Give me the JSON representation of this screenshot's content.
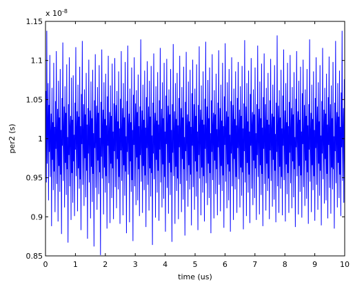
{
  "chart_data": {
    "type": "line",
    "xlabel": "time (us)",
    "ylabel": "per2 (s)",
    "xlim": [
      0,
      10
    ],
    "ylim": [
      0.85,
      1.15
    ],
    "y_multiplier_base": "x 10",
    "y_multiplier_exponent": "-8",
    "xticks": [
      "0",
      "1",
      "2",
      "3",
      "4",
      "5",
      "6",
      "7",
      "8",
      "9",
      "10"
    ],
    "yticks": [
      "0.85",
      "0.9",
      "0.95",
      "1",
      "1.05",
      "1.1",
      "1.15"
    ],
    "grid": false,
    "line_color": "#0000ff",
    "series": [
      {
        "values": [
          1.002,
          1.061,
          0.944,
          1.138,
          0.968,
          1.012,
          1.071,
          0.921,
          1.043,
          0.983,
          1.107,
          0.951,
          1.004,
          1.032,
          0.888,
          1.065,
          0.973,
          1.021,
          0.934,
          1.097,
          0.958,
          1.015,
          0.906,
          1.048,
          0.987,
          1.112,
          0.942,
          1.006,
          1.038,
          0.894,
          1.074,
          0.965,
          1.027,
          0.932,
          1.089,
          0.954,
          1.011,
          0.878,
          1.052,
          0.991,
          1.123,
          0.946,
          1.008,
          1.041,
          0.912,
          1.067,
          0.969,
          1.033,
          0.928,
          1.095,
          0.961,
          1.002,
          0.867,
          1.044,
          0.979,
          1.104,
          0.939,
          1.013,
          1.029,
          0.896,
          1.078,
          0.956,
          1.024,
          0.918,
          1.081,
          0.971,
          1.005,
          0.901,
          1.046,
          0.986,
          1.117,
          0.952,
          1.009,
          1.035,
          0.907,
          1.069,
          0.962,
          1.028,
          0.936,
          1.092,
          0.948,
          1.016,
          0.883,
          1.057,
          0.993,
          1.125,
          0.941,
          1.003,
          1.044,
          0.914,
          1.063,
          0.975,
          1.031,
          0.925,
          1.084,
          0.959,
          1.018,
          0.872,
          1.039,
          0.981,
          1.101,
          0.944,
          1.011,
          1.036,
          0.898,
          1.073,
          0.964,
          1.026,
          0.919,
          1.088,
          0.955,
          1.007,
          0.862,
          1.049,
          0.988,
          1.108,
          0.937,
          1.014,
          1.042,
          0.909,
          1.066,
          0.972,
          1.033,
          0.929,
          1.094,
          0.957,
          1.001,
          0.851,
          1.047,
          0.977,
          1.114,
          0.949,
          1.012,
          1.037,
          0.903,
          1.072,
          0.963,
          1.025,
          0.931,
          1.083,
          0.952,
          1.017,
          0.885,
          1.054,
          0.991,
          1.106,
          0.943,
          1.004,
          1.034,
          0.892,
          1.068,
          0.968,
          1.029,
          0.924,
          1.096,
          0.962,
          1.009,
          0.897,
          1.045,
          0.984,
          1.103,
          0.938,
          1.019,
          1.043,
          0.911,
          1.061,
          0.974,
          1.022,
          0.935,
          1.086,
          0.951,
          1.013,
          0.891,
          1.051,
          0.985,
          1.112,
          0.946,
          1.006,
          1.039,
          0.902,
          1.071,
          0.966,
          1.027,
          0.927,
          1.098,
          0.958,
          1.003,
          0.879,
          1.048,
          0.983,
          1.119,
          0.954,
          1.015,
          1.032,
          0.893,
          1.064,
          0.971,
          1.021,
          0.932,
          1.091,
          0.947,
          1.011,
          0.869,
          1.056,
          0.992,
          1.104,
          0.939,
          1.008,
          1.045,
          0.915,
          1.062,
          0.976,
          1.034,
          0.921,
          1.082,
          0.961,
          1.016,
          0.901,
          1.041,
          0.979,
          1.127,
          0.945,
          1.002,
          1.036,
          0.905,
          1.069,
          0.965,
          1.024,
          0.934,
          1.087,
          0.953,
          1.014,
          0.887,
          1.053,
          0.988,
          1.099,
          0.941,
          1.007,
          1.041,
          0.908,
          1.074,
          0.962,
          1.028,
          0.926,
          1.093,
          0.956,
          1.004,
          0.864,
          1.046,
          0.981,
          1.109,
          0.948,
          1.012,
          1.033,
          0.899,
          1.067,
          0.973,
          1.023,
          0.931,
          1.085,
          0.959,
          1.018,
          0.895,
          1.049,
          0.986,
          1.116,
          0.944,
          1.005,
          1.038,
          0.912,
          1.072,
          0.967,
          1.026,
          0.923,
          1.097,
          0.951,
          1.009,
          0.881,
          1.055,
          0.993,
          1.102,
          0.937,
          1.016,
          1.042,
          0.904,
          1.063,
          0.969,
          1.031,
          0.928,
          1.089,
          0.957,
          1.011,
          0.868,
          1.044,
          0.982,
          1.121,
          0.952,
          1.003,
          1.035,
          0.891,
          1.071,
          0.964,
          1.025,
          0.933,
          1.084,
          0.949,
          1.017,
          0.897,
          1.052,
          0.989,
          1.106,
          0.942,
          1.008,
          1.039,
          0.906,
          1.066,
          0.974,
          1.027,
          0.922,
          1.092,
          0.961,
          1.002,
          0.876,
          1.047,
          0.984,
          1.111,
          0.946,
          1.013,
          1.031,
          0.913,
          1.073,
          0.966,
          1.022,
          0.935,
          1.088,
          0.954,
          1.015,
          0.889,
          1.058,
          0.991,
          1.101,
          0.938,
          1.006,
          1.044,
          0.909,
          1.064,
          0.971,
          1.029,
          0.926,
          1.095,
          0.958,
          1.009,
          0.883,
          1.043,
          0.979,
          1.118,
          0.949,
          1.011,
          1.037,
          0.902,
          1.068,
          0.963,
          1.024,
          0.931,
          1.086,
          0.952,
          1.018,
          0.894,
          1.051,
          0.987,
          1.124,
          0.943,
          1.004,
          1.041,
          0.915,
          1.075,
          0.968,
          1.026,
          0.924,
          1.091,
          0.956,
          1.007,
          0.879,
          1.049,
          0.983,
          1.108,
          0.947,
          1.014,
          1.033,
          0.898,
          1.062,
          0.972,
          1.031,
          0.929,
          1.083,
          0.961,
          1.012,
          0.902,
          1.046,
          0.989,
          1.113,
          0.941,
          1.003,
          1.039,
          0.907,
          1.069,
          0.965,
          1.023,
          0.933,
          1.097,
          0.953,
          1.016,
          0.886,
          1.054,
          0.992,
          1.122,
          0.945,
          1.008,
          1.035,
          0.911,
          1.072,
          0.967,
          1.028,
          0.921,
          1.089,
          0.958,
          1.005,
          0.881,
          1.048,
          0.981,
          1.104,
          0.939,
          1.011,
          1.043,
          0.896,
          1.064,
          0.974,
          1.025,
          0.935,
          1.086,
          0.951,
          1.017,
          0.905,
          1.052,
          0.988,
          1.098,
          0.948,
          1.006,
          1.037,
          0.912,
          1.067,
          0.963,
          1.029,
          0.927,
          1.093,
          0.957,
          1.013,
          0.884,
          1.045,
          0.984,
          1.126,
          0.944,
          1.002,
          1.041,
          0.901,
          1.071,
          0.969,
          1.022,
          0.931,
          1.087,
          0.954,
          1.009,
          0.892,
          1.057,
          0.991,
          1.103,
          0.936,
          1.015,
          1.034,
          0.915,
          1.063,
          0.972,
          1.031,
          0.924,
          1.091,
          0.962,
          1.007,
          0.896,
          1.044,
          0.979,
          1.119,
          0.951,
          1.012,
          1.038,
          0.903,
          1.073,
          0.966,
          1.026,
          0.928,
          1.096,
          0.955,
          1.014,
          0.888,
          1.053,
          0.987,
          1.109,
          0.942,
          1.004,
          1.044,
          0.908,
          1.065,
          0.968,
          1.024,
          0.933,
          1.084,
          0.949,
          1.018,
          0.897,
          1.049,
          0.985,
          1.102,
          0.946,
          1.009,
          1.032,
          0.913,
          1.069,
          0.973,
          1.028,
          0.922,
          1.094,
          0.959,
          1.006,
          0.893,
          1.046,
          0.983,
          1.132,
          0.939,
          1.011,
          1.042,
          0.905,
          1.062,
          0.964,
          1.027,
          0.936,
          1.088,
          0.951,
          1.013,
          0.902,
          1.055,
          0.991,
          1.114,
          0.947,
          1.003,
          1.036,
          0.894,
          1.071,
          0.967,
          1.021,
          0.929,
          1.097,
          0.956,
          1.016,
          0.905,
          1.047,
          0.982,
          1.107,
          0.943,
          1.008,
          1.039,
          0.911,
          1.066,
          0.971,
          1.031,
          0.925,
          1.085,
          0.961,
          1.002,
          0.887,
          1.051,
          0.989,
          1.112,
          0.952,
          1.014,
          1.035,
          0.903,
          1.074,
          0.965,
          1.024,
          0.932,
          1.092,
          0.953,
          1.009,
          0.899,
          1.058,
          0.993,
          1.101,
          0.938,
          1.007,
          1.043,
          0.914,
          1.063,
          0.972,
          1.029,
          0.923,
          1.089,
          0.957,
          1.017,
          0.891,
          1.044,
          0.986,
          1.127,
          0.945,
          1.005,
          1.033,
          0.906,
          1.069,
          0.966,
          1.025,
          0.934,
          1.086,
          0.952,
          1.011,
          0.895,
          1.052,
          0.988,
          1.104,
          0.941,
          1.013,
          1.041,
          0.909,
          1.072,
          0.968,
          1.022,
          0.927,
          1.094,
          0.959,
          1.004,
          0.889,
          1.048,
          0.981,
          1.116,
          0.948,
          1.006,
          1.037,
          0.917,
          1.065,
          0.974,
          1.032,
          0.921,
          1.083,
          0.955,
          1.018,
          0.898,
          1.053,
          0.992,
          1.105,
          0.937,
          1.009,
          1.044,
          0.904,
          1.068,
          0.963,
          1.026,
          0.935,
          1.098,
          0.961,
          1.003,
          0.885,
          1.046,
          0.984,
          1.125,
          0.943,
          1.012,
          1.034,
          0.912,
          1.071,
          0.969,
          1.028,
          0.924,
          1.087,
          0.954,
          1.015,
          0.901,
          1.059,
          0.989,
          1.138,
          0.946,
          1.007,
          1.039,
          0.918,
          1.076,
          0.965
        ]
      }
    ]
  }
}
